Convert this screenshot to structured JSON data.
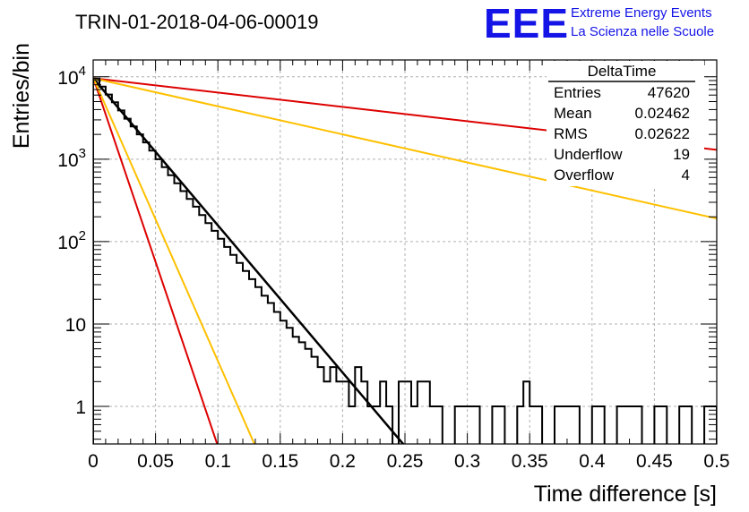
{
  "header": {
    "title": "TRIN-01-2018-04-06-00019",
    "logo": "EEE",
    "org_line1": "Extreme Energy Events",
    "org_line2": "La Scienza nelle Scuole"
  },
  "stats_box": {
    "name": "DeltaTime",
    "rows": [
      {
        "label": "Entries",
        "value": "47620"
      },
      {
        "label": "Mean",
        "value": "0.02462"
      },
      {
        "label": "RMS",
        "value": "0.02622"
      },
      {
        "label": "Underflow",
        "value": "19"
      },
      {
        "label": "Overflow",
        "value": "4"
      }
    ]
  },
  "chart_data": {
    "type": "histogram",
    "xlabel": "Time difference [s]",
    "ylabel": "Entries/bin",
    "xlim": [
      0,
      0.5
    ],
    "ylim": [
      0.35,
      16000
    ],
    "yscale": "log",
    "grid": true,
    "x_ticks": [
      "0",
      "0.05",
      "0.1",
      "0.15",
      "0.2",
      "0.25",
      "0.3",
      "0.35",
      "0.4",
      "0.45",
      "0.5"
    ],
    "y_ticks": [
      {
        "value": 1,
        "base": "1",
        "exp": ""
      },
      {
        "value": 10,
        "base": "10",
        "exp": ""
      },
      {
        "value": 100,
        "base": "10",
        "exp": "2"
      },
      {
        "value": 1000,
        "base": "10",
        "exp": "3"
      },
      {
        "value": 10000,
        "base": "10",
        "exp": "4"
      }
    ],
    "bin_width": 0.005,
    "bin_start": 0,
    "counts": [
      9500,
      7600,
      6100,
      4900,
      3900,
      3100,
      2500,
      2000,
      1600,
      1270,
      1000,
      800,
      640,
      510,
      410,
      330,
      265,
      210,
      168,
      135,
      108,
      86,
      69,
      55,
      44,
      35,
      28,
      22,
      18,
      14,
      11,
      9,
      7,
      6,
      5,
      4,
      3,
      2,
      3,
      2,
      2,
      1,
      3,
      2,
      1,
      1,
      2,
      1,
      0,
      2,
      2,
      1,
      2,
      2,
      1,
      1,
      0,
      0,
      1,
      1,
      1,
      1,
      0,
      0,
      1,
      1,
      0,
      0,
      1,
      2,
      1,
      1,
      0,
      0,
      1,
      1,
      1,
      1,
      0,
      0,
      1,
      1,
      0,
      0,
      1,
      1,
      1,
      1,
      0,
      0,
      1,
      1,
      0,
      0,
      1,
      1,
      0,
      0,
      1,
      1
    ],
    "series": [
      {
        "color": "#000000",
        "points": [
          [
            0,
            9600
          ],
          [
            0.25,
            0.33
          ]
        ]
      },
      {
        "color": "#dd0000",
        "points": [
          [
            0,
            9800
          ],
          [
            0.1,
            0.33
          ]
        ]
      },
      {
        "color": "#ffc000",
        "points": [
          [
            0,
            9800
          ],
          [
            0.13,
            0.33
          ]
        ]
      },
      {
        "color": "#dd0000",
        "points": [
          [
            0,
            9600
          ],
          [
            0.5,
            1300
          ]
        ]
      },
      {
        "color": "#ffc000",
        "points": [
          [
            0,
            9600
          ],
          [
            0.5,
            190
          ]
        ]
      }
    ]
  }
}
